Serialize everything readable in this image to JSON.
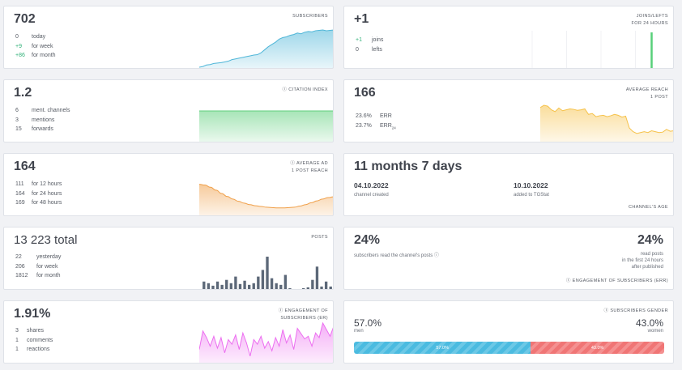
{
  "subscribers": {
    "value": "702",
    "tag": "SUBSCRIBERS",
    "rows": [
      {
        "value": "0",
        "label": "today"
      },
      {
        "value": "+9",
        "label": "for week"
      },
      {
        "value": "+86",
        "label": "for month"
      }
    ],
    "chart_data": {
      "type": "area",
      "color": "#4fb6d8",
      "values": [
        2,
        4,
        8,
        9,
        12,
        13,
        14,
        16,
        18,
        22,
        24,
        26,
        28,
        30,
        32,
        34,
        35,
        40,
        48,
        56,
        62,
        68,
        76,
        80,
        82,
        86,
        88,
        92,
        90,
        94,
        96,
        95,
        98,
        99,
        100,
        98,
        99,
        100
      ]
    }
  },
  "joins": {
    "value": "+1",
    "tag_line1": "JOINS/LEFTS",
    "tag_line2": "FOR 24 HOURS",
    "rows": [
      {
        "value": "+1",
        "label": "joins"
      },
      {
        "value": "0",
        "label": "lefts"
      }
    ],
    "chart_data": {
      "type": "bar",
      "color": "#58d07a",
      "values": [
        0,
        0,
        0,
        0,
        0,
        0,
        0,
        0,
        0,
        0,
        0,
        0,
        0,
        0,
        0,
        0,
        0,
        0,
        0,
        0,
        0,
        0,
        0,
        0,
        0,
        0,
        0,
        0,
        0,
        0,
        0,
        1,
        0,
        0,
        0,
        0
      ]
    }
  },
  "citation": {
    "value": "1.2",
    "tag": "CITATION INDEX",
    "rows": [
      {
        "value": "6",
        "label": "ment. channels"
      },
      {
        "value": "3",
        "label": "mentions"
      },
      {
        "value": "15",
        "label": "forwards"
      }
    ],
    "chart_data": {
      "type": "area",
      "color": "#5fcf7c",
      "values": [
        1.2,
        1.2
      ]
    }
  },
  "reach": {
    "value": "166",
    "tag_line1": "AVERAGE REACH",
    "tag_line2": "1 POST",
    "err": [
      {
        "value": "23.6%",
        "label": "ERR"
      },
      {
        "value": "23.7%",
        "label": "ERR",
        "sub": "24"
      }
    ],
    "chart_data": {
      "type": "area",
      "color": "#f6c24a",
      "values": [
        75,
        80,
        78,
        70,
        66,
        74,
        68,
        70,
        72,
        71,
        69,
        70,
        72,
        60,
        62,
        55,
        57,
        58,
        55,
        57,
        60,
        58,
        54,
        56,
        30,
        22,
        18,
        20,
        22,
        20,
        24,
        22,
        20,
        21,
        27,
        23,
        24
      ]
    }
  },
  "adreach": {
    "value": "164",
    "tag_line1": "AVERAGE AD",
    "tag_line2": "1 POST REACH",
    "rows": [
      {
        "value": "111",
        "label": "for 12 hours"
      },
      {
        "value": "164",
        "label": "for 24 hours"
      },
      {
        "value": "169",
        "label": "for 48 hours"
      }
    ],
    "chart_data": {
      "type": "area",
      "color": "#f0a04a",
      "values": [
        82,
        80,
        74,
        66,
        57,
        49,
        42,
        36,
        31,
        27,
        24,
        22,
        20,
        19,
        18,
        18,
        19,
        20,
        23,
        27,
        32,
        37,
        42,
        46,
        48
      ]
    }
  },
  "age": {
    "value": "11 months 7 days",
    "created_date": "04.10.2022",
    "created_label": "channel created",
    "added_date": "10.10.2022",
    "added_label": "added to TGStat",
    "footer": "CHANNEL'S AGE"
  },
  "posts": {
    "value": "13 223 total",
    "tag": "POSTS",
    "rows": [
      {
        "value": "22",
        "label": "yesterday"
      },
      {
        "value": "206",
        "label": "for week"
      },
      {
        "value": "1812",
        "label": "for month"
      }
    ],
    "chart_data": {
      "type": "bar",
      "color": "#5c6878",
      "values": [
        10,
        8,
        5,
        10,
        6,
        12,
        8,
        16,
        7,
        11,
        6,
        8,
        16,
        24,
        40,
        14,
        8,
        6,
        18,
        2,
        1,
        1,
        2,
        3,
        12,
        28,
        4,
        10,
        4
      ]
    }
  },
  "engagement": {
    "left_value": "24%",
    "left_label": "subscribers read the channel's posts",
    "right_value": "24%",
    "right_label_1": "read posts",
    "right_label_2": "in the first 24 hours",
    "right_label_3": "after published",
    "footer": "ENGAGEMENT OF SUBSCRIBERS (ERR)"
  },
  "er": {
    "value": "1.91%",
    "tag_line1": "ENGAGEMENT OF",
    "tag_line2": "SUBSCRIBERS (ER)",
    "rows": [
      {
        "value": "3",
        "label": "shares"
      },
      {
        "value": "1",
        "label": "comments"
      },
      {
        "value": "1",
        "label": "reactions"
      }
    ],
    "chart_data": {
      "type": "area",
      "color": "#ec6ef0",
      "values": [
        50,
        78,
        68,
        55,
        70,
        52,
        68,
        45,
        65,
        58,
        72,
        50,
        75,
        60,
        40,
        65,
        58,
        70,
        52,
        62,
        48,
        68,
        55,
        80,
        60,
        72,
        50,
        82,
        74,
        66,
        70,
        55,
        75,
        68,
        90,
        80,
        70,
        85
      ]
    }
  },
  "gender": {
    "tag": "SUBSCRIBERS GENDER",
    "men_value": "57.0%",
    "men_label": "men",
    "women_value": "43.0%",
    "women_label": "women",
    "men_bar": "57.0%",
    "women_bar": "43.0%",
    "chart_data": {
      "type": "bar",
      "values": [
        57.0,
        43.0
      ],
      "colors": [
        "#4bbbe0",
        "#f07575"
      ]
    }
  },
  "icons": {
    "info": "info-circle-icon"
  }
}
